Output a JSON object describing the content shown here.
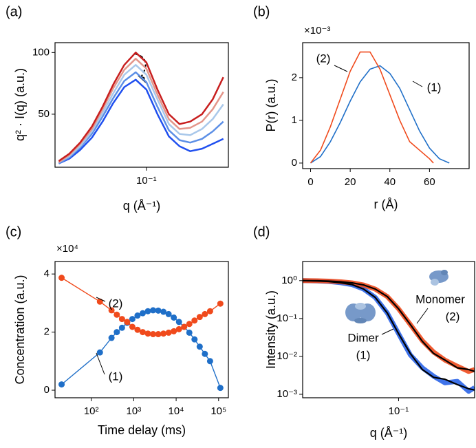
{
  "chart_data": [
    {
      "type": "line",
      "panel": "(a)",
      "xlabel": "q (Å⁻¹)",
      "ylabel": "q² · I(q) (a.u.)",
      "xscale": "log",
      "xlim": [
        0.0148,
        0.555
      ],
      "ylim": [
        7,
        108
      ],
      "xticks": [
        {
          "value": 0.1,
          "label": "10⁻¹"
        }
      ],
      "yticks": [
        50,
        100
      ],
      "x": [
        0.016,
        0.02,
        0.025,
        0.032,
        0.04,
        0.05,
        0.063,
        0.08,
        0.1,
        0.126,
        0.16,
        0.2,
        0.25,
        0.32,
        0.4,
        0.5
      ],
      "series": [
        {
          "color": "#1f4fef",
          "values": [
            10,
            14,
            21,
            31,
            44,
            59,
            72,
            78,
            70,
            50,
            32,
            24,
            20,
            22,
            26,
            30
          ]
        },
        {
          "color": "#5c8fe6",
          "values": [
            10,
            15,
            23,
            34,
            48,
            63,
            77,
            84,
            76,
            56,
            37,
            29,
            27,
            30,
            36,
            44
          ]
        },
        {
          "color": "#a9c8ea",
          "values": [
            11,
            16,
            24,
            36,
            51,
            67,
            82,
            90,
            82,
            62,
            42,
            34,
            33,
            38,
            46,
            58
          ]
        },
        {
          "color": "#e3958a",
          "values": [
            11,
            17,
            26,
            38,
            54,
            71,
            86,
            95,
            87,
            66,
            46,
            38,
            39,
            44,
            54,
            68
          ]
        },
        {
          "color": "#c81e1e",
          "values": [
            12,
            18,
            27,
            40,
            56,
            74,
            90,
            100,
            92,
            70,
            50,
            42,
            44,
            50,
            62,
            80
          ]
        }
      ]
    },
    {
      "type": "line",
      "panel": "(b)",
      "xlabel": "r (Å)",
      "ylabel": "P(r) (a.u.)",
      "y_multiplier": "×10⁻³",
      "xlim": [
        -4,
        80
      ],
      "ylim": [
        -0.13,
        2.82
      ],
      "xticks": [
        0,
        20,
        40,
        60
      ],
      "yticks": [
        0,
        1,
        2
      ],
      "series": [
        {
          "color": "#1f6fc8",
          "x": [
            0,
            5,
            10,
            15,
            20,
            25,
            30,
            35,
            40,
            45,
            50,
            55,
            60,
            65,
            70
          ],
          "values": [
            0,
            0.15,
            0.5,
            0.95,
            1.45,
            1.9,
            2.2,
            2.28,
            2.1,
            1.75,
            1.25,
            0.75,
            0.35,
            0.1,
            0
          ]
        },
        {
          "color": "#f04a1c",
          "x": [
            0,
            5,
            10,
            15,
            20,
            25,
            30,
            35,
            40,
            45,
            50,
            55,
            60,
            62
          ],
          "values": [
            0,
            0.3,
            0.85,
            1.5,
            2.15,
            2.6,
            2.6,
            2.2,
            1.6,
            1.0,
            0.5,
            0.3,
            0.1,
            0
          ]
        }
      ],
      "annotations": [
        "(2)",
        "(1)"
      ]
    },
    {
      "type": "line",
      "panel": "(c)",
      "xlabel": "Time delay (ms)",
      "ylabel": "Concentration (a.u.)",
      "y_multiplier": "×10⁴",
      "xscale": "log",
      "xlim": [
        14,
        170000
      ],
      "ylim": [
        -0.26,
        4.43
      ],
      "markers": true,
      "xticks": [
        {
          "value": 100,
          "label": "10²"
        },
        {
          "value": 1000,
          "label": "10³"
        },
        {
          "value": 10000,
          "label": "10⁴"
        },
        {
          "value": 100000,
          "label": "10⁵"
        }
      ],
      "yticks": [
        0,
        2,
        4
      ],
      "x": [
        20,
        160,
        300,
        400,
        530,
        700,
        930,
        1230,
        1630,
        2160,
        2860,
        3790,
        5020,
        6650,
        8800,
        11660,
        15450,
        20460,
        27100,
        35900,
        47550,
        63000,
        110000
      ],
      "series": [
        {
          "color": "#1f6fc8",
          "values": [
            0.2,
            1.3,
            1.8,
            2.0,
            2.15,
            2.32,
            2.45,
            2.57,
            2.65,
            2.72,
            2.75,
            2.74,
            2.7,
            2.62,
            2.5,
            2.35,
            2.18,
            1.98,
            1.75,
            1.5,
            1.25,
            1.0,
            0.08
          ]
        },
        {
          "color": "#f04a1c",
          "values": [
            3.87,
            3.05,
            2.75,
            2.6,
            2.45,
            2.35,
            2.18,
            2.08,
            2.0,
            1.95,
            1.93,
            1.93,
            1.95,
            1.98,
            2.03,
            2.1,
            2.18,
            2.28,
            2.4,
            2.52,
            2.62,
            2.72,
            2.98
          ]
        }
      ],
      "annotations": [
        "(2)",
        "(1)"
      ]
    },
    {
      "type": "line",
      "panel": "(d)",
      "xlabel": "q (Å⁻¹)",
      "ylabel": "Intensity (a.u.)",
      "xscale": "log",
      "yscale": "log",
      "xlim": [
        0.015,
        0.45
      ],
      "ylim": [
        0.00081,
        3.2
      ],
      "xticks": [
        {
          "value": 0.1,
          "label": "10⁻¹"
        }
      ],
      "yticks": [
        {
          "value": 1,
          "label": "10⁰"
        },
        {
          "value": 0.1,
          "label": "10⁻¹"
        },
        {
          "value": 0.01,
          "label": "10⁻²"
        },
        {
          "value": 0.001,
          "label": "10⁻³"
        }
      ],
      "x": [
        0.015,
        0.02,
        0.025,
        0.032,
        0.04,
        0.05,
        0.063,
        0.08,
        0.1,
        0.126,
        0.16,
        0.2,
        0.25,
        0.32,
        0.4,
        0.45
      ],
      "series": [
        {
          "kind": "data",
          "color": "#2a64e8",
          "values": [
            1,
            0.98,
            0.95,
            0.88,
            0.78,
            0.6,
            0.36,
            0.14,
            0.04,
            0.011,
            0.005,
            0.003,
            0.002,
            0.0022,
            0.0012,
            0.0015
          ]
        },
        {
          "kind": "data",
          "color": "#f04a1c",
          "values": [
            1,
            0.99,
            0.97,
            0.93,
            0.87,
            0.77,
            0.6,
            0.38,
            0.18,
            0.07,
            0.026,
            0.013,
            0.008,
            0.0055,
            0.004,
            0.0045
          ]
        },
        {
          "kind": "fit",
          "color": "#000000",
          "values": [
            1,
            0.98,
            0.95,
            0.88,
            0.78,
            0.6,
            0.36,
            0.14,
            0.04,
            0.012,
            0.0045,
            0.0028,
            0.0025,
            0.0018,
            0.0014,
            0.0013
          ]
        },
        {
          "kind": "fit",
          "color": "#000000",
          "values": [
            1,
            0.99,
            0.97,
            0.93,
            0.87,
            0.77,
            0.6,
            0.38,
            0.18,
            0.07,
            0.025,
            0.012,
            0.008,
            0.005,
            0.0045,
            0.004
          ]
        }
      ],
      "annotations": [
        "Monomer",
        "(2)",
        "Dimer",
        "(1)"
      ]
    }
  ]
}
